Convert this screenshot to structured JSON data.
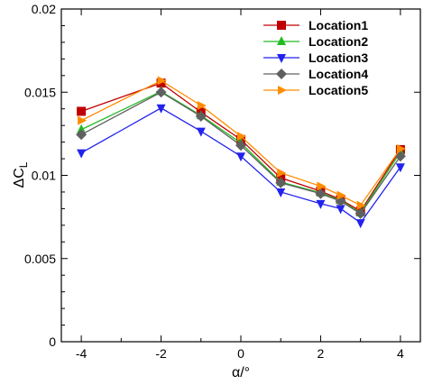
{
  "chart_data": {
    "type": "line",
    "title": "",
    "xlabel": "α/°",
    "ylabel_main": "ΔC",
    "ylabel_sub": "L",
    "xlim": [
      -4.5,
      4.5
    ],
    "ylim": [
      0,
      0.02
    ],
    "xticks": [
      -4,
      -2,
      0,
      2,
      4
    ],
    "xtick_labels": [
      "-4",
      "-2",
      "0",
      "2",
      "4"
    ],
    "yticks": [
      0,
      0.005,
      0.01,
      0.015,
      0.02
    ],
    "ytick_labels": [
      "0",
      "0.005",
      "0.01",
      "0.015",
      "0.02"
    ],
    "grid": false,
    "legend_position": "top-right",
    "x": [
      -4,
      -2,
      -1,
      0,
      1,
      2,
      2.5,
      3,
      4
    ],
    "series": [
      {
        "name": "Location1",
        "color": "#c00000",
        "marker": "square",
        "values": [
          0.01385,
          0.01555,
          0.0138,
          0.01215,
          0.00985,
          0.00905,
          0.00855,
          0.00785,
          0.01155
        ]
      },
      {
        "name": "Location2",
        "color": "#22bb22",
        "marker": "triangle-up",
        "values": [
          0.01275,
          0.01505,
          0.0136,
          0.01195,
          0.0096,
          0.00895,
          0.0085,
          0.00775,
          0.0114
        ]
      },
      {
        "name": "Location3",
        "color": "#2222ee",
        "marker": "triangle-down",
        "values": [
          0.01135,
          0.01405,
          0.01265,
          0.01115,
          0.009,
          0.0083,
          0.008,
          0.00715,
          0.0105
        ]
      },
      {
        "name": "Location4",
        "color": "#606060",
        "marker": "diamond",
        "values": [
          0.01245,
          0.015,
          0.01355,
          0.0118,
          0.00955,
          0.0089,
          0.00845,
          0.0077,
          0.01115
        ]
      },
      {
        "name": "Location5",
        "color": "#ff8c00",
        "marker": "triangle-right",
        "values": [
          0.0133,
          0.0157,
          0.0142,
          0.01235,
          0.01015,
          0.00935,
          0.0088,
          0.0082,
          0.0116
        ]
      }
    ]
  }
}
